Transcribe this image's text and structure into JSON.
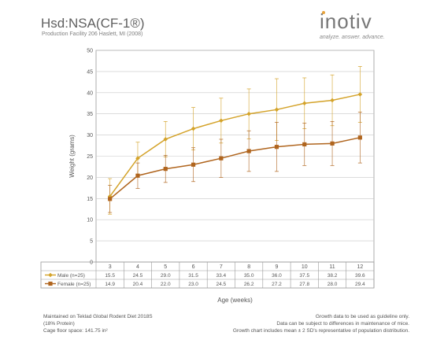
{
  "header": {
    "title": "Hsd:NSA(CF-1®)",
    "subtitle": "Production Facility 206 Haslett, MI (2008)"
  },
  "logo": {
    "text": "inotiv",
    "tagline": "analyze. answer. advance.",
    "accent_color": "#e8a33a"
  },
  "footer": {
    "left_lines": [
      "Maintained on Teklad Global Rodent Diet 2018S",
      "(18% Protein)",
      "Cage floor space: 141.75 in²"
    ],
    "right_lines": [
      "Growth data to be used as guideline only.",
      "Data can be subject to differences in maintenance of mice.",
      "Growth chart includes mean ± 2 SD's representative of population distribution."
    ]
  },
  "chart_data": {
    "type": "line",
    "title": "",
    "xlabel": "Age (weeks)",
    "ylabel": "Weight (grams)",
    "x": [
      "3",
      "4",
      "5",
      "6",
      "7",
      "8",
      "9",
      "10",
      "11",
      "12"
    ],
    "ylim": [
      0,
      50
    ],
    "yticks": [
      0,
      5,
      10,
      15,
      20,
      25,
      30,
      35,
      40,
      45,
      50
    ],
    "grid": true,
    "error_bars": "mean ± 2 SD",
    "legend_placement": "data-table",
    "series": [
      {
        "name": "Male (n=25)",
        "color": "#d4a32a",
        "marker": "diamond",
        "values": [
          15.5,
          24.5,
          29.0,
          31.5,
          33.4,
          35.0,
          36.0,
          37.5,
          38.2,
          39.6
        ],
        "values_text": [
          "15.5",
          "24.5",
          "29.0",
          "31.5",
          "33.4",
          "35.0",
          "36.0",
          "37.5",
          "38.2",
          "39.6"
        ],
        "error": [
          4.2,
          3.8,
          4.2,
          5.0,
          5.3,
          5.9,
          7.3,
          6.0,
          6.0,
          6.6
        ]
      },
      {
        "name": "Female (n=25)",
        "color": "#b0651e",
        "marker": "square",
        "values": [
          14.9,
          20.4,
          22.0,
          23.0,
          24.5,
          26.2,
          27.2,
          27.8,
          28.0,
          29.4
        ],
        "values_text": [
          "14.9",
          "20.4",
          "22.0",
          "23.0",
          "24.5",
          "26.2",
          "27.2",
          "27.8",
          "28.0",
          "29.4"
        ],
        "error": [
          3.2,
          3.0,
          3.2,
          4.0,
          4.5,
          4.8,
          5.8,
          5.0,
          5.2,
          6.0
        ]
      }
    ]
  }
}
